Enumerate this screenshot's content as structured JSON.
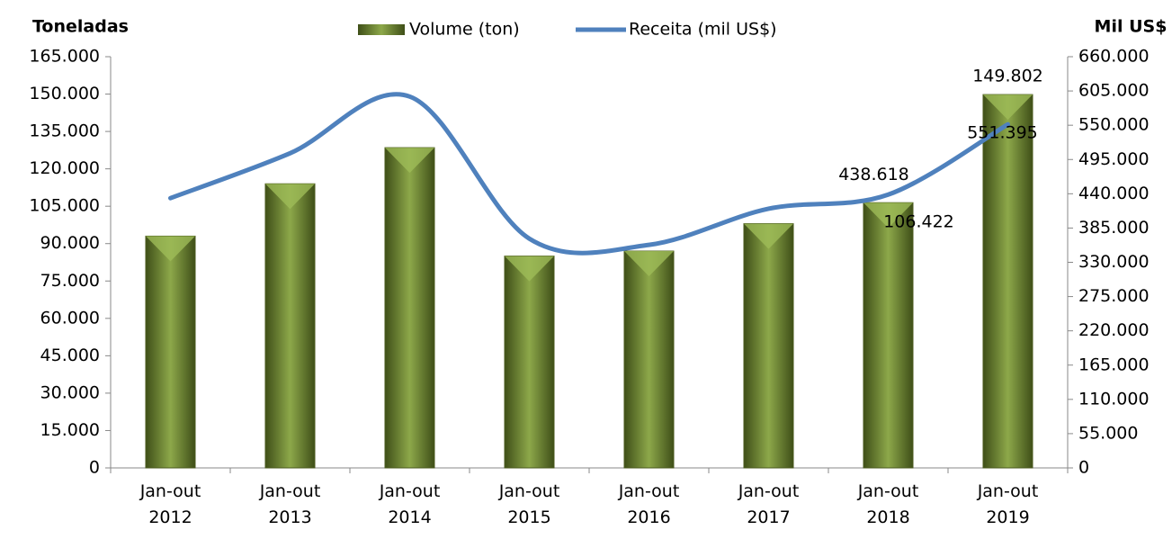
{
  "chart_data": {
    "type": "bar-line",
    "y_title": "Toneladas",
    "y2_title": "Mil US$",
    "categories": [
      "Jan-out 2012",
      "Jan-out 2013",
      "Jan-out 2014",
      "Jan-out 2015",
      "Jan-out 2016",
      "Jan-out 2017",
      "Jan-out 2018",
      "Jan-out 2019"
    ],
    "series": [
      {
        "name": "Volume (ton)",
        "type": "bar",
        "color": "#6b8230",
        "values": [
          93000,
          114000,
          128500,
          85000,
          87000,
          98000,
          106422,
          149802
        ],
        "value_labels": [
          null,
          null,
          null,
          null,
          null,
          null,
          "106.422",
          "149.802"
        ]
      },
      {
        "name": "Receita (mil US$)",
        "type": "line",
        "axis": "y2",
        "color": "#4f81bd",
        "values": [
          433000,
          505000,
          596000,
          368000,
          358000,
          416000,
          438618,
          551395
        ],
        "value_labels": [
          null,
          null,
          null,
          null,
          null,
          null,
          "438.618",
          "551.395"
        ]
      }
    ],
    "ylim": [
      0,
      165000
    ],
    "yticks": [
      0,
      {
        "value": 15000,
        "label": "15.000"
      },
      {
        "value": 30000,
        "label": "30.000"
      },
      {
        "value": 45000,
        "label": "45.000"
      },
      {
        "value": 60000,
        "label": "60.000"
      },
      {
        "value": 75000,
        "label": "75.000"
      },
      {
        "value": 90000,
        "label": "90.000"
      },
      {
        "value": 105000,
        "label": "105.000"
      },
      {
        "value": 120000,
        "label": "120.000"
      },
      {
        "value": 135000,
        "label": "135.000"
      },
      {
        "value": 150000,
        "label": "150.000"
      },
      {
        "value": 165000,
        "label": "165.000"
      }
    ],
    "y2lim": [
      0,
      660000
    ],
    "y2ticks": [
      0,
      {
        "value": 55000,
        "label": "55.000"
      },
      {
        "value": 110000,
        "label": "110.000"
      },
      {
        "value": 165000,
        "label": "165.000"
      },
      {
        "value": 220000,
        "label": "220.000"
      },
      {
        "value": 275000,
        "label": "275.000"
      },
      {
        "value": 330000,
        "label": "330.000"
      },
      {
        "value": 385000,
        "label": "385.000"
      },
      {
        "value": 440000,
        "label": "440.000"
      },
      {
        "value": 495000,
        "label": "495.000"
      },
      {
        "value": 550000,
        "label": "550.000"
      },
      {
        "value": 605000,
        "label": "605.000"
      },
      {
        "value": 660000,
        "label": "660.000"
      }
    ],
    "grid": false
  }
}
